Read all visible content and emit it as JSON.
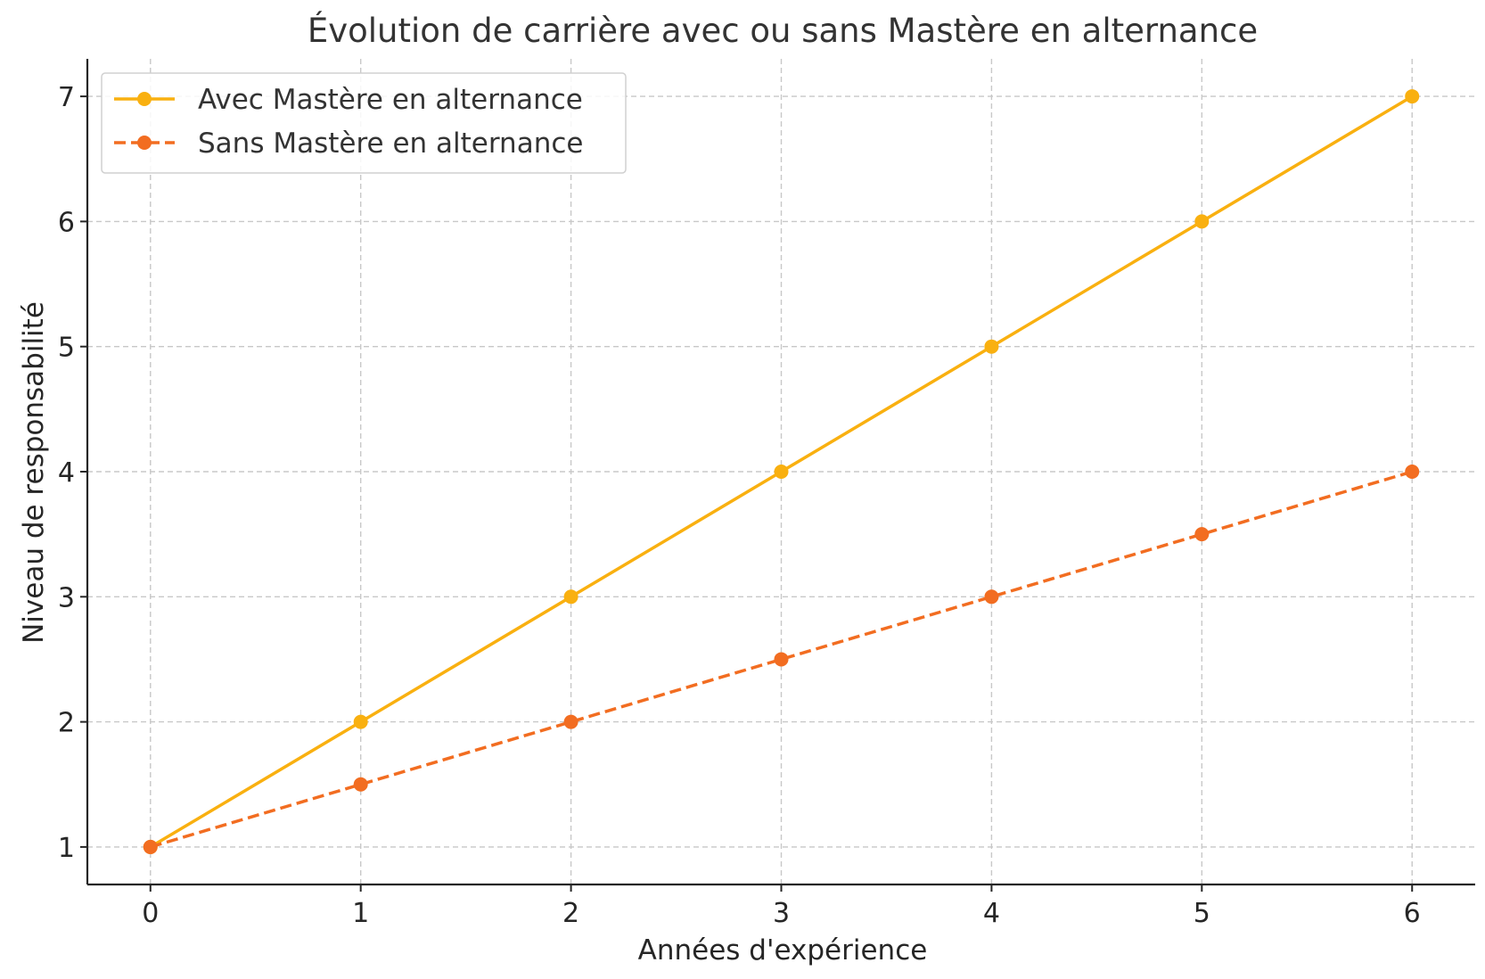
{
  "chart_data": {
    "type": "line",
    "title": "Évolution de carrière avec ou sans Mastère en alternance",
    "xlabel": "Années d'expérience",
    "ylabel": "Niveau de responsabilité",
    "x": [
      0,
      1,
      2,
      3,
      4,
      5,
      6
    ],
    "xticks": [
      "0",
      "1",
      "2",
      "3",
      "4",
      "5",
      "6"
    ],
    "yticks": [
      "1",
      "2",
      "3",
      "4",
      "5",
      "6",
      "7"
    ],
    "xlim": [
      -0.3,
      6.3
    ],
    "ylim": [
      0.7,
      7.3
    ],
    "grid": true,
    "legend_position": "top-left",
    "series": [
      {
        "name": "Avec Mastère en alternance",
        "values": [
          1,
          2,
          3,
          4,
          5,
          6,
          7
        ],
        "color": "#F9B010",
        "line_style": "solid",
        "marker": "circle"
      },
      {
        "name": "Sans Mastère en alternance",
        "values": [
          1,
          1.5,
          2,
          2.5,
          3,
          3.5,
          4
        ],
        "color": "#F26D21",
        "line_style": "dashed",
        "marker": "circle"
      }
    ]
  }
}
